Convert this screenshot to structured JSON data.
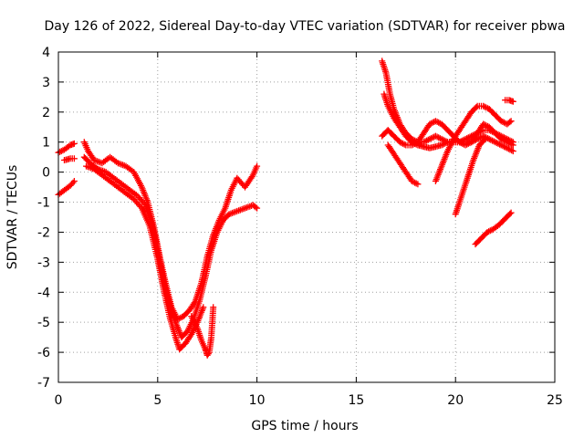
{
  "chart_data": {
    "type": "scatter",
    "title": "Day 126 of 2022, Sidereal Day-to-day VTEC variation (SDTVAR) for receiver pbwa",
    "xlabel": "GPS time / hours",
    "ylabel": "SDTVAR / TECUs",
    "xlim": [
      0,
      25
    ],
    "ylim": [
      -7,
      4
    ],
    "xticks": [
      0,
      5,
      10,
      15,
      20,
      25
    ],
    "yticks": [
      -7,
      -6,
      -5,
      -4,
      -3,
      -2,
      -1,
      0,
      1,
      2,
      3,
      4
    ],
    "grid": true,
    "legend": "none",
    "marker": "plus",
    "series_color": "#ff0000",
    "series": [
      {
        "x": [
          0.0,
          0.3,
          0.6,
          0.8
        ],
        "y": [
          0.65,
          0.75,
          0.9,
          0.95
        ]
      },
      {
        "x": [
          0.3,
          0.6,
          0.8
        ],
        "y": [
          0.4,
          0.45,
          0.45
        ]
      },
      {
        "x": [
          0.0,
          0.3,
          0.6,
          0.8
        ],
        "y": [
          -0.75,
          -0.6,
          -0.45,
          -0.3
        ]
      },
      {
        "x": [
          1.3,
          1.5,
          1.8,
          2.2,
          2.6,
          3.0,
          3.4,
          3.8,
          4.2,
          4.5,
          4.8,
          5.1,
          5.4,
          5.7,
          6.0,
          6.3,
          6.6,
          6.9,
          7.2,
          7.5,
          7.8,
          8.1,
          8.4,
          8.7,
          9.0,
          9.4,
          9.8,
          10.0
        ],
        "y": [
          1.0,
          0.7,
          0.4,
          0.3,
          0.5,
          0.3,
          0.2,
          0.0,
          -0.5,
          -1.0,
          -1.8,
          -2.8,
          -3.7,
          -4.5,
          -4.9,
          -4.8,
          -4.6,
          -4.3,
          -3.7,
          -2.8,
          -2.1,
          -1.6,
          -1.2,
          -0.6,
          -0.2,
          -0.5,
          -0.1,
          0.2
        ]
      },
      {
        "x": [
          1.3,
          1.6,
          2.0,
          2.4,
          2.8,
          3.2,
          3.6,
          4.0,
          4.4,
          4.7,
          5.0,
          5.3,
          5.6,
          5.9,
          6.2,
          6.5,
          6.8,
          7.1,
          7.4,
          7.7,
          8.0,
          8.3,
          8.6,
          9.0,
          9.4,
          9.8,
          10.0
        ],
        "y": [
          0.5,
          0.3,
          0.1,
          0.0,
          -0.2,
          -0.4,
          -0.6,
          -0.8,
          -1.1,
          -1.7,
          -2.6,
          -3.6,
          -4.4,
          -5.0,
          -5.5,
          -5.3,
          -4.9,
          -4.3,
          -3.5,
          -2.6,
          -2.0,
          -1.6,
          -1.4,
          -1.3,
          -1.2,
          -1.1,
          -1.2
        ]
      },
      {
        "x": [
          1.4,
          1.8,
          2.2,
          2.6,
          3.0,
          3.4,
          3.8,
          4.2,
          4.6,
          5.0,
          5.3,
          5.6,
          5.9,
          6.1,
          6.4,
          6.7,
          7.0,
          7.3
        ],
        "y": [
          0.2,
          0.1,
          -0.1,
          -0.3,
          -0.5,
          -0.7,
          -0.9,
          -1.2,
          -1.8,
          -2.9,
          -3.9,
          -4.8,
          -5.5,
          -5.9,
          -5.7,
          -5.4,
          -5.0,
          -4.5
        ]
      },
      {
        "x": [
          6.7,
          7.0,
          7.2,
          7.4,
          7.5,
          7.6,
          7.7,
          7.8
        ],
        "y": [
          -4.8,
          -5.2,
          -5.6,
          -5.9,
          -6.1,
          -6.0,
          -5.5,
          -4.5
        ]
      },
      {
        "x": [
          16.3,
          16.5,
          16.7,
          16.9,
          17.2,
          17.5,
          17.8,
          18.1,
          18.4,
          18.7,
          19.0,
          19.3,
          19.6,
          19.9,
          20.2,
          20.5,
          20.8,
          21.1,
          21.4,
          21.7,
          22.0,
          22.3,
          22.6,
          22.9
        ],
        "y": [
          3.7,
          3.3,
          2.6,
          2.1,
          1.6,
          1.3,
          1.1,
          1.0,
          1.3,
          1.6,
          1.7,
          1.6,
          1.4,
          1.2,
          1.0,
          0.9,
          1.0,
          1.3,
          1.6,
          1.5,
          1.3,
          1.1,
          1.0,
          0.9
        ]
      },
      {
        "x": [
          16.4,
          16.6,
          16.9,
          17.2,
          17.5,
          17.8,
          18.1,
          18.4,
          18.7,
          19.0,
          19.3,
          19.6,
          19.9,
          20.2,
          20.5,
          20.8,
          21.1,
          21.4,
          21.7,
          22.0,
          22.3,
          22.6,
          22.9
        ],
        "y": [
          2.6,
          2.2,
          1.8,
          1.5,
          1.2,
          1.0,
          0.9,
          0.85,
          0.8,
          0.85,
          0.9,
          1.0,
          1.0,
          1.0,
          1.1,
          1.2,
          1.3,
          1.4,
          1.4,
          1.3,
          1.2,
          1.1,
          1.0
        ]
      },
      {
        "x": [
          16.3,
          16.6,
          16.9,
          17.2,
          17.5,
          17.8,
          18.1,
          18.4,
          18.7,
          19.0,
          19.3,
          19.6,
          19.9,
          20.2,
          20.5,
          20.8,
          21.1,
          21.4,
          21.7,
          22.0,
          22.3,
          22.6,
          22.9
        ],
        "y": [
          1.2,
          1.4,
          1.2,
          1.0,
          0.9,
          0.9,
          1.0,
          1.0,
          1.1,
          1.2,
          1.1,
          1.0,
          1.0,
          1.0,
          1.0,
          1.0,
          1.1,
          1.2,
          1.1,
          1.0,
          0.9,
          0.8,
          0.7
        ]
      },
      {
        "x": [
          16.6,
          16.9,
          17.2,
          17.5,
          17.8,
          18.1
        ],
        "y": [
          0.9,
          0.6,
          0.3,
          0.0,
          -0.3,
          -0.4
        ]
      },
      {
        "x": [
          19.0,
          19.3,
          19.6,
          19.9,
          20.2,
          20.5,
          20.8,
          21.1,
          21.4,
          21.7,
          22.0,
          22.3,
          22.6,
          22.8
        ],
        "y": [
          -0.3,
          0.2,
          0.7,
          1.1,
          1.4,
          1.7,
          2.0,
          2.2,
          2.2,
          2.1,
          1.9,
          1.7,
          1.6,
          1.7
        ]
      },
      {
        "x": [
          20.0,
          20.3,
          20.6,
          20.9,
          21.2,
          21.5
        ],
        "y": [
          -1.4,
          -0.8,
          -0.2,
          0.4,
          0.9,
          1.1
        ]
      },
      {
        "x": [
          22.5,
          22.7,
          22.9
        ],
        "y": [
          2.4,
          2.4,
          2.35
        ]
      },
      {
        "x": [
          21.0,
          21.3,
          21.6,
          21.9,
          22.2,
          22.5,
          22.8
        ],
        "y": [
          -2.4,
          -2.2,
          -2.0,
          -1.9,
          -1.75,
          -1.55,
          -1.35
        ]
      }
    ]
  }
}
